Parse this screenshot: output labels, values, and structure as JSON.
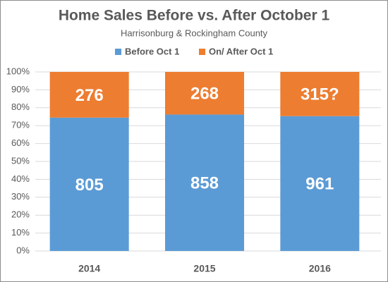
{
  "chart_data": {
    "type": "bar",
    "stacking": "percent",
    "title": "Home Sales Before vs. After October 1",
    "subtitle": "Harrisonburg & Rockingham County",
    "categories": [
      "2014",
      "2015",
      "2016"
    ],
    "series": [
      {
        "name": "Before Oct 1",
        "color": "#5b9bd5",
        "values": [
          805,
          858,
          961
        ]
      },
      {
        "name": "On/ After Oct 1",
        "color": "#ed7d31",
        "values": [
          276,
          268,
          315
        ],
        "value_labels": [
          "276",
          "268",
          "315?"
        ]
      }
    ],
    "ylim": [
      0,
      100
    ],
    "yticks": [
      {
        "value": 0,
        "label": "0%"
      },
      {
        "value": 10,
        "label": "10%"
      },
      {
        "value": 20,
        "label": "20%"
      },
      {
        "value": 30,
        "label": "30%"
      },
      {
        "value": 40,
        "label": "40%"
      },
      {
        "value": 50,
        "label": "50%"
      },
      {
        "value": 60,
        "label": "60%"
      },
      {
        "value": 70,
        "label": "70%"
      },
      {
        "value": 80,
        "label": "80%"
      },
      {
        "value": 90,
        "label": "90%"
      },
      {
        "value": 100,
        "label": "100%"
      }
    ],
    "grid": true,
    "legend": "top"
  }
}
